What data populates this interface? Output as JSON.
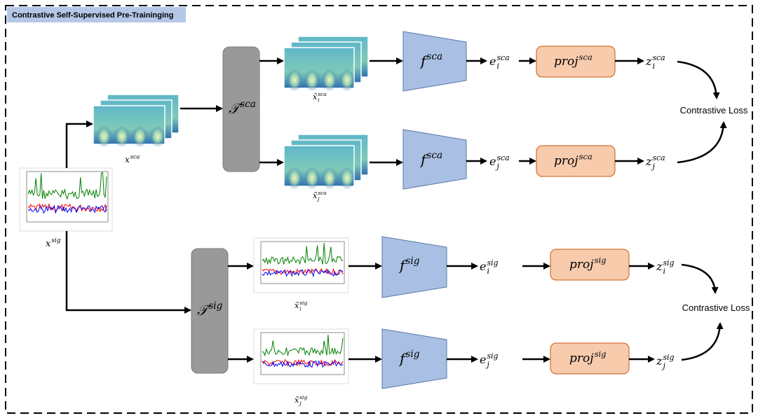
{
  "title": "Contrastive Self-Supervised Pre-Traininging",
  "labels": {
    "x_sca": {
      "base": "x",
      "sup": "sca"
    },
    "x_sig": {
      "base": "x",
      "sup": "sig"
    },
    "t_sca": {
      "base": "𝒯",
      "sup": "sca"
    },
    "t_sig": {
      "base": "𝒯",
      "sup": "sig"
    },
    "xt_i_sca": {
      "base": "x̃",
      "sub": "i",
      "sup": "sca"
    },
    "xt_j_sca": {
      "base": "x̃",
      "sub": "j",
      "sup": "sca"
    },
    "xt_i_sig": {
      "base": "x̃",
      "sub": "i",
      "sup": "sig"
    },
    "xt_j_sig": {
      "base": "x̃",
      "sub": "j",
      "sup": "sig"
    },
    "f_i_sca": {
      "base": "f",
      "sup": "sca"
    },
    "f_j_sca": {
      "base": "f",
      "sup": "sca"
    },
    "f_i_sig": {
      "base": "f",
      "sup": "sig"
    },
    "f_j_sig": {
      "base": "f",
      "sup": "sig"
    },
    "e_i_sca": {
      "base": "e",
      "sub": "i",
      "sup": "sca"
    },
    "e_j_sca": {
      "base": "e",
      "sub": "j",
      "sup": "sca"
    },
    "e_i_sig": {
      "base": "e",
      "sub": "i",
      "sup": "sig"
    },
    "e_j_sig": {
      "base": "e",
      "sub": "j",
      "sup": "sig"
    },
    "proj_i_sca": {
      "base": "proj",
      "sup": "sca"
    },
    "proj_j_sca": {
      "base": "proj",
      "sup": "sca"
    },
    "proj_i_sig": {
      "base": "proj",
      "sup": "sig"
    },
    "proj_j_sig": {
      "base": "proj",
      "sup": "sig"
    },
    "z_i_sca": {
      "base": "z",
      "sub": "i",
      "sup": "sca"
    },
    "z_j_sca": {
      "base": "z",
      "sub": "j",
      "sup": "sca"
    },
    "z_i_sig": {
      "base": "z",
      "sub": "i",
      "sup": "sig"
    },
    "z_j_sig": {
      "base": "z",
      "sub": "j",
      "sup": "sig"
    }
  },
  "loss_labels": [
    "Contrastive Loss",
    "Contrastive Loss"
  ]
}
